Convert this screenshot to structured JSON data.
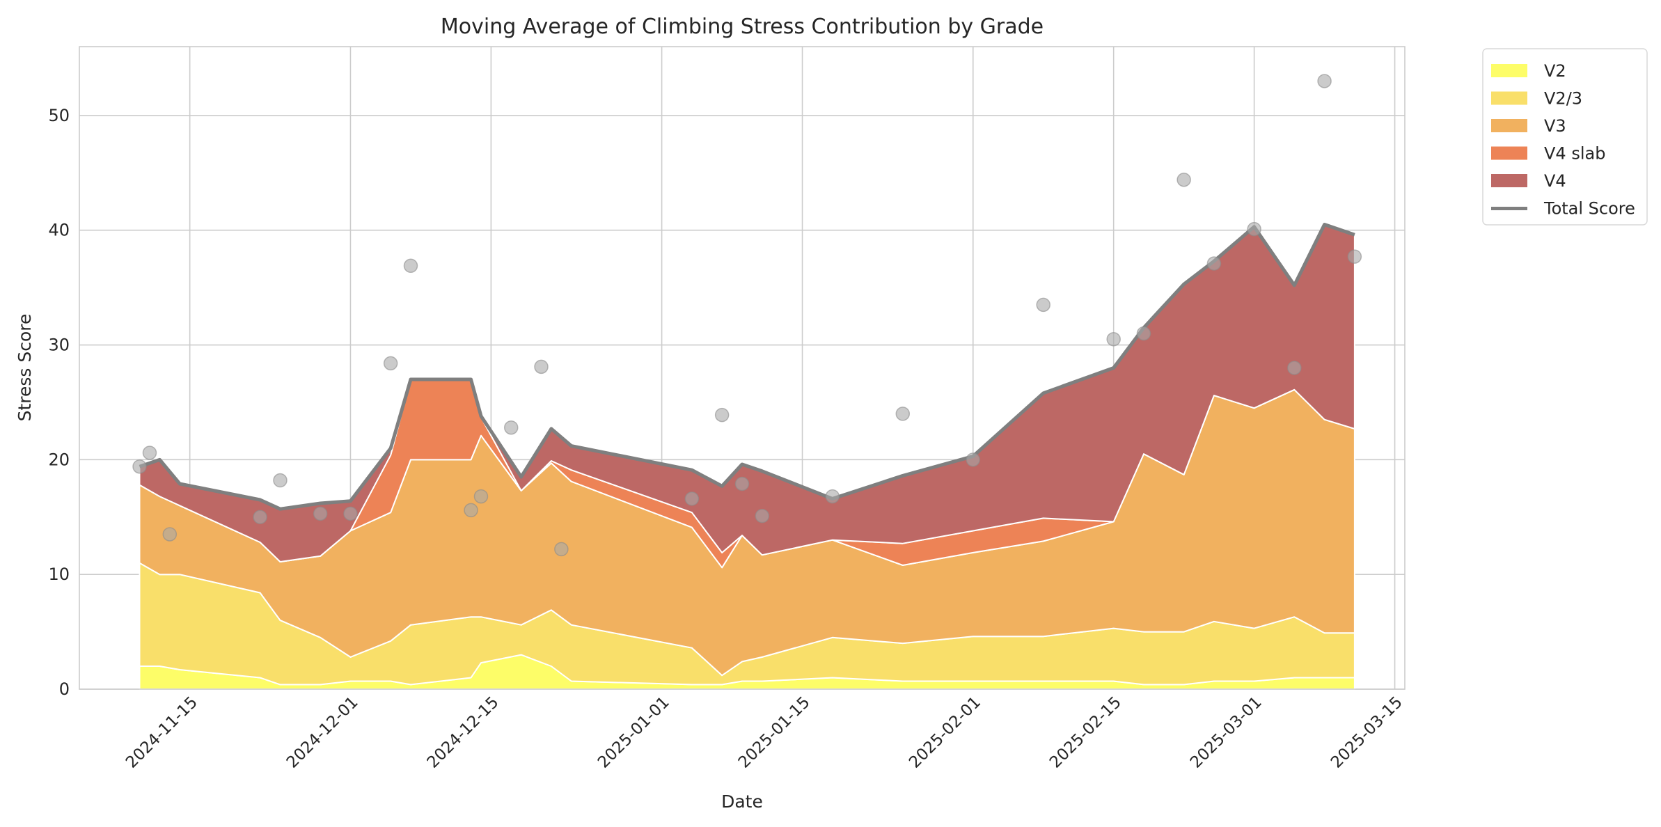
{
  "chart_data": {
    "type": "area",
    "stacked": true,
    "title": "Moving Average of Climbing Stress Contribution by Grade",
    "xlabel": "Date",
    "ylabel": "Stress Score",
    "xlim": [
      "2024-11-04",
      "2025-03-16"
    ],
    "ylim": [
      0,
      56
    ],
    "x_ticks": [
      "2024-11-15",
      "2024-12-01",
      "2024-12-15",
      "2025-01-01",
      "2025-01-15",
      "2025-02-01",
      "2025-02-15",
      "2025-03-01",
      "2025-03-15"
    ],
    "y_ticks": [
      0,
      10,
      20,
      30,
      40,
      50
    ],
    "grid": true,
    "legend_position": "outside-top-right",
    "x": [
      "2024-11-10",
      "2024-11-12",
      "2024-11-14",
      "2024-11-22",
      "2024-11-24",
      "2024-11-28",
      "2024-12-01",
      "2024-12-05",
      "2024-12-07",
      "2024-12-13",
      "2024-12-14",
      "2024-12-18",
      "2024-12-21",
      "2024-12-23",
      "2025-01-04",
      "2025-01-07",
      "2025-01-09",
      "2025-01-11",
      "2025-01-18",
      "2025-01-25",
      "2025-02-01",
      "2025-02-08",
      "2025-02-15",
      "2025-02-18",
      "2025-02-22",
      "2025-02-25",
      "2025-03-01",
      "2025-03-05",
      "2025-03-08",
      "2025-03-11"
    ],
    "series": [
      {
        "name": "V2",
        "color": "#fdfd68",
        "values": [
          2.0,
          2.0,
          1.7,
          1.0,
          0.4,
          0.4,
          0.7,
          0.7,
          0.4,
          1.0,
          2.3,
          3.0,
          2.0,
          0.7,
          0.4,
          0.4,
          0.7,
          0.7,
          1.0,
          0.7,
          0.7,
          0.7,
          0.7,
          0.4,
          0.4,
          0.7,
          0.7,
          1.0,
          1.0,
          1.0
        ]
      },
      {
        "name": "V2/3",
        "color": "#f9df6a",
        "values": [
          9.0,
          8.0,
          8.3,
          7.4,
          5.6,
          4.1,
          2.1,
          3.5,
          5.2,
          5.3,
          4.0,
          2.6,
          4.9,
          4.9,
          3.2,
          0.8,
          1.7,
          2.1,
          3.5,
          3.3,
          3.9,
          3.9,
          4.6,
          4.6,
          4.6,
          5.2,
          4.6,
          5.3,
          3.9,
          3.9
        ]
      },
      {
        "name": "V3",
        "color": "#f1b15f",
        "values": [
          6.8,
          6.8,
          6.0,
          4.4,
          5.1,
          7.1,
          11.0,
          11.2,
          14.4,
          13.7,
          15.8,
          11.7,
          12.8,
          12.5,
          10.5,
          9.4,
          11.0,
          8.9,
          8.5,
          6.8,
          7.3,
          8.3,
          9.3,
          15.5,
          13.7,
          19.7,
          19.2,
          19.8,
          18.6,
          17.8
        ]
      },
      {
        "name": "V4 slab",
        "color": "#ed8356",
        "values": [
          0,
          0,
          0,
          0,
          0,
          0,
          0,
          5.0,
          7.0,
          7.0,
          1.6,
          0,
          0.2,
          1.0,
          1.3,
          1.3,
          0,
          0,
          0,
          1.9,
          1.9,
          2.0,
          0,
          0,
          0,
          0,
          0,
          0,
          0,
          0
        ]
      },
      {
        "name": "V4",
        "color": "#bd6865",
        "values": [
          1.6,
          3.2,
          1.9,
          3.7,
          4.6,
          4.6,
          2.6,
          0.6,
          0,
          0,
          0.1,
          1.2,
          2.8,
          2.1,
          3.7,
          5.8,
          6.2,
          7.3,
          3.6,
          5.9,
          6.5,
          10.9,
          13.4,
          11.0,
          16.6,
          11.7,
          15.8,
          9.1,
          17.0,
          16.9
        ]
      }
    ],
    "total": {
      "name": "Total Score",
      "color": "#7f7f7f",
      "values": [
        19.4,
        20.0,
        17.9,
        16.5,
        15.7,
        16.2,
        16.4,
        21.0,
        27.0,
        27.0,
        23.8,
        18.5,
        22.7,
        21.2,
        19.1,
        17.7,
        19.6,
        19.0,
        16.6,
        18.6,
        20.3,
        25.8,
        28.0,
        31.5,
        35.3,
        37.3,
        40.3,
        35.2,
        40.5,
        39.6
      ]
    },
    "scatter": {
      "color": "#a9a9a9",
      "points": [
        {
          "x": "2024-11-10",
          "y": 19.4
        },
        {
          "x": "2024-11-11",
          "y": 20.6
        },
        {
          "x": "2024-11-13",
          "y": 13.5
        },
        {
          "x": "2024-11-22",
          "y": 15.0
        },
        {
          "x": "2024-11-24",
          "y": 18.2
        },
        {
          "x": "2024-11-28",
          "y": 15.3
        },
        {
          "x": "2024-12-01",
          "y": 15.3
        },
        {
          "x": "2024-12-05",
          "y": 28.4
        },
        {
          "x": "2024-12-07",
          "y": 36.9
        },
        {
          "x": "2024-12-13",
          "y": 15.6
        },
        {
          "x": "2024-12-14",
          "y": 16.8
        },
        {
          "x": "2024-12-17",
          "y": 22.8
        },
        {
          "x": "2024-12-20",
          "y": 28.1
        },
        {
          "x": "2024-12-22",
          "y": 12.2
        },
        {
          "x": "2025-01-04",
          "y": 16.6
        },
        {
          "x": "2025-01-07",
          "y": 23.9
        },
        {
          "x": "2025-01-09",
          "y": 17.9
        },
        {
          "x": "2025-01-11",
          "y": 15.1
        },
        {
          "x": "2025-01-18",
          "y": 16.8
        },
        {
          "x": "2025-01-25",
          "y": 24.0
        },
        {
          "x": "2025-02-01",
          "y": 20.0
        },
        {
          "x": "2025-02-08",
          "y": 33.5
        },
        {
          "x": "2025-02-15",
          "y": 30.5
        },
        {
          "x": "2025-02-18",
          "y": 31.0
        },
        {
          "x": "2025-02-22",
          "y": 44.4
        },
        {
          "x": "2025-02-25",
          "y": 37.1
        },
        {
          "x": "2025-03-01",
          "y": 40.1
        },
        {
          "x": "2025-03-05",
          "y": 28.0
        },
        {
          "x": "2025-03-08",
          "y": 53.0
        },
        {
          "x": "2025-03-11",
          "y": 37.7
        }
      ]
    }
  }
}
